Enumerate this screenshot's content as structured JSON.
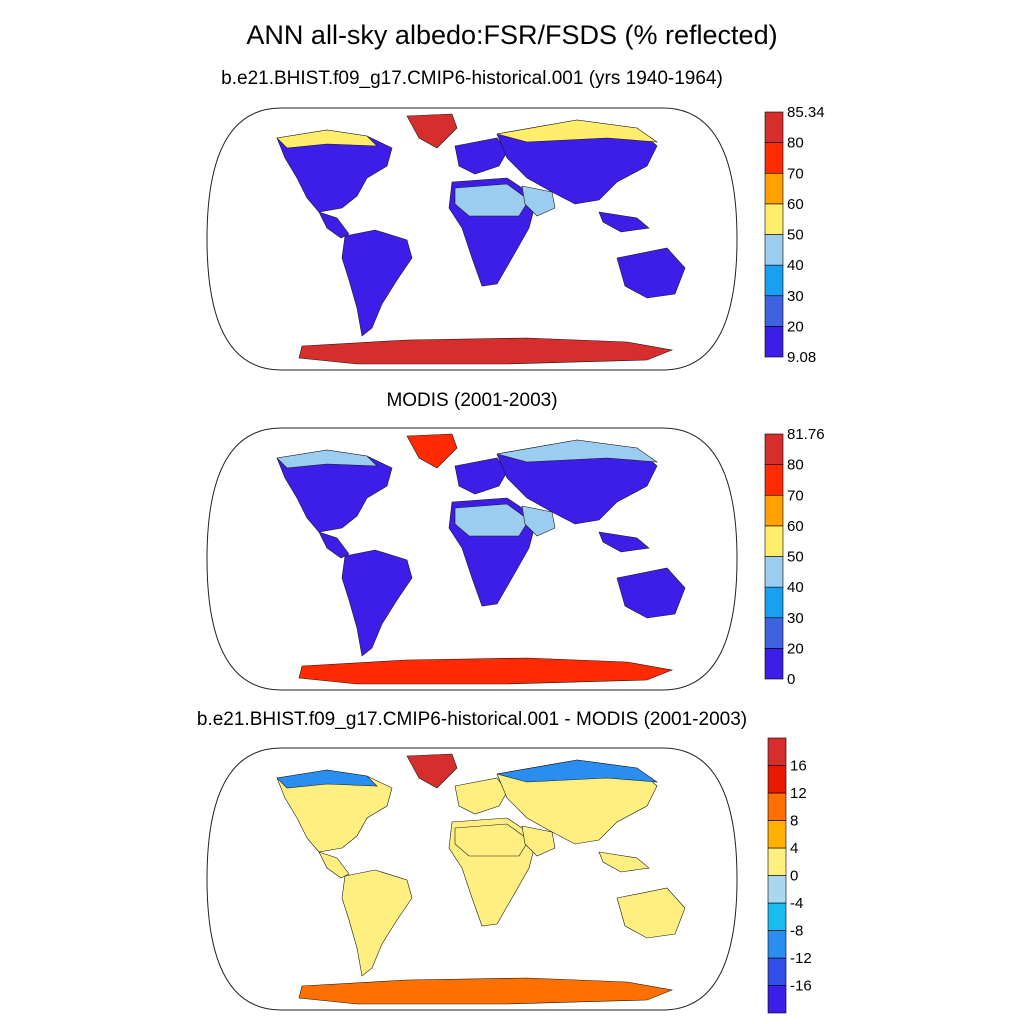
{
  "figure": {
    "title": "ANN all-sky albedo:FSR/FSDS (% reflected)"
  },
  "chart_data": [
    {
      "type": "heatmap",
      "title": "b.e21.BHIST.f09_g17.CMIP6-historical.001 (yrs 1940-1964)",
      "map_projection": "Robinson, global land only",
      "colorbar": {
        "min_label": "9.08",
        "max_label": "85.34",
        "levels": [
          "20",
          "30",
          "40",
          "50",
          "60",
          "70",
          "80"
        ],
        "colors": [
          "#3c1ee8",
          "#3f63e0",
          "#19a1f0",
          "#9bcdf0",
          "#ffed6b",
          "#ffa200",
          "#ff2a00",
          "#d62d2d"
        ]
      },
      "regions": [
        {
          "name": "Antarctica",
          "category": 7
        },
        {
          "name": "Greenland",
          "category": 7
        },
        {
          "name": "Arctic coasts",
          "category": 4
        },
        {
          "name": "Sahara / Arabia",
          "category": 3
        },
        {
          "name": "Other land",
          "category": 0
        }
      ]
    },
    {
      "type": "heatmap",
      "title": "MODIS (2001-2003)",
      "map_projection": "Robinson, global land only",
      "colorbar": {
        "min_label": "0",
        "max_label": "81.76",
        "levels": [
          "20",
          "30",
          "40",
          "50",
          "60",
          "70",
          "80"
        ],
        "colors": [
          "#3c1ee8",
          "#3f63e0",
          "#19a1f0",
          "#9bcdf0",
          "#ffed6b",
          "#ffa200",
          "#ff2a00",
          "#d62d2d"
        ]
      },
      "regions": [
        {
          "name": "Antarctica",
          "category": 6
        },
        {
          "name": "Greenland",
          "category": 6
        },
        {
          "name": "Arctic coasts",
          "category": 3
        },
        {
          "name": "Sahara / Arabia",
          "category": 3
        },
        {
          "name": "Other land",
          "category": 0
        }
      ]
    },
    {
      "type": "heatmap",
      "title": "b.e21.BHIST.f09_g17.CMIP6-historical.001 - MODIS (2001-2003)",
      "map_projection": "Robinson, global land only",
      "colorbar": {
        "levels": [
          "-16",
          "-12",
          "-8",
          "-4",
          "0",
          "4",
          "8",
          "12",
          "16"
        ],
        "colors": [
          "#3c1ee8",
          "#2f4fe8",
          "#2a8ef0",
          "#19bdf0",
          "#a8d8f0",
          "#ffef80",
          "#ffb000",
          "#ff7000",
          "#e81a00",
          "#d62d2d"
        ]
      },
      "regions": [
        {
          "name": "Antarctica",
          "category": 7
        },
        {
          "name": "Greenland",
          "category": 9
        },
        {
          "name": "Arctic coasts",
          "category": 2
        },
        {
          "name": "Sahara / Arabia",
          "category": 5
        },
        {
          "name": "Other land",
          "category": 5
        }
      ]
    }
  ]
}
